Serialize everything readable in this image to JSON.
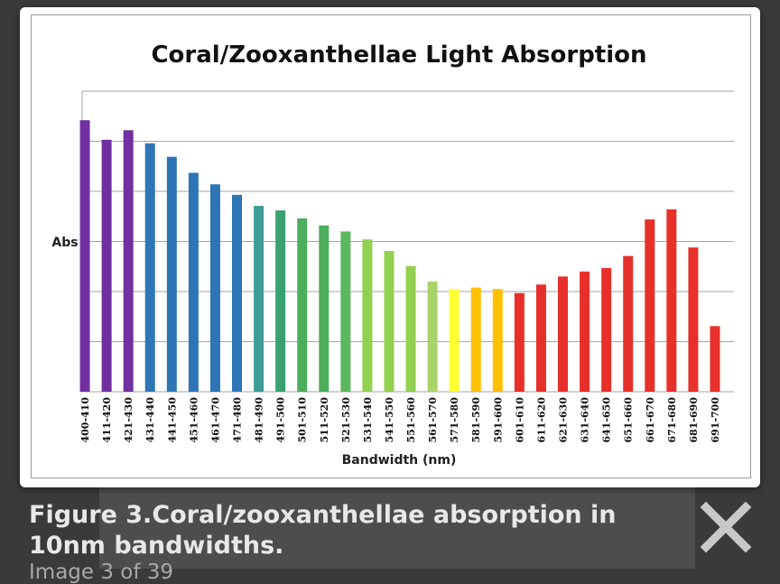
{
  "viewer": {
    "caption": "Figure 3.Coral/zooxanthellae absorption in 10nm bandwidths.",
    "counter": "Image 3 of 39",
    "close_icon": "close-icon"
  },
  "chart_data": {
    "type": "bar",
    "title": "Coral/Zooxanthellae Light Absorption",
    "xlabel": "Bandwidth (nm)",
    "ylabel": "Abs",
    "ylim": [
      0,
      6
    ],
    "grid": true,
    "categories": [
      "400-410",
      "411-420",
      "421-430",
      "431-440",
      "441-450",
      "451-460",
      "461-470",
      "471-480",
      "481-490",
      "491-500",
      "501-510",
      "511-520",
      "521-530",
      "531-540",
      "541-550",
      "551-560",
      "561-570",
      "571-580",
      "581-590",
      "591-600",
      "601-610",
      "611-620",
      "621-630",
      "631-640",
      "641-650",
      "651-660",
      "661-670",
      "671-680",
      "681-690",
      "691-700"
    ],
    "values": [
      5.42,
      5.03,
      5.22,
      4.96,
      4.69,
      4.37,
      4.14,
      3.93,
      3.71,
      3.62,
      3.46,
      3.32,
      3.2,
      3.04,
      2.81,
      2.51,
      2.2,
      2.05,
      2.08,
      2.05,
      1.97,
      2.14,
      2.3,
      2.4,
      2.47,
      2.71,
      3.44,
      3.64,
      2.88,
      1.31
    ],
    "colors": [
      "#7030a0",
      "#7030a0",
      "#7030a0",
      "#2e75b6",
      "#2e75b6",
      "#2e75b6",
      "#2e75b6",
      "#2e75b6",
      "#3e9c98",
      "#3aa070",
      "#4cae5c",
      "#4cae5c",
      "#5cb85c",
      "#92d050",
      "#92d050",
      "#92d050",
      "#a9d46a",
      "#ffff33",
      "#ffc000",
      "#ffc000",
      "#e8302a",
      "#e8302a",
      "#e8302a",
      "#e8302a",
      "#e8302a",
      "#e8302a",
      "#e8302a",
      "#e8302a",
      "#e8302a",
      "#e8302a"
    ]
  }
}
